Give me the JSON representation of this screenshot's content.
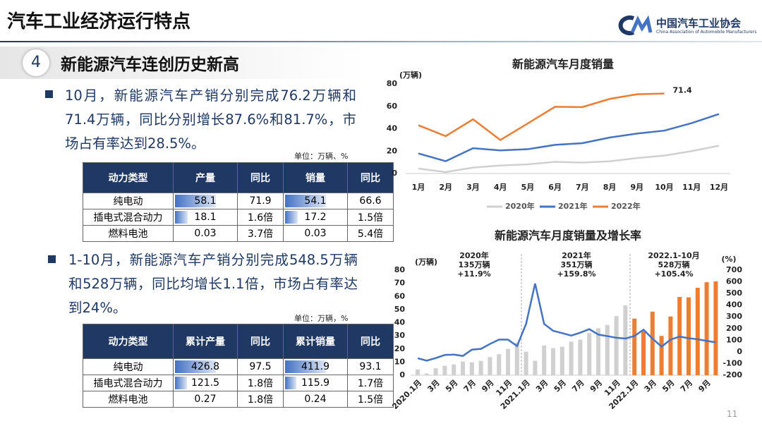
{
  "header": {
    "title": "汽车工业经济运行特点",
    "logo_cn": "中国汽车工业协会",
    "logo_en": "China Association of Automobile Manufacturers"
  },
  "section": {
    "number": 4,
    "title": "新能源汽车连创历史新高"
  },
  "bullets": [
    "10月，新能源汽车产销分别完成76.2万辆和71.4万辆，同比分别增长87.6%和81.7%，市场占有率达到28.5%。",
    "1-10月，新能源汽车产销分别完成548.5万辆和528万辆，同比均增长1.1倍，市场占有率达到24%。"
  ],
  "table1": {
    "unit": "单位：万辆、%",
    "bar_columns": [
      1,
      3
    ],
    "header": [
      "动力类型",
      "产量",
      "同比",
      "销量",
      "同比"
    ],
    "rows": [
      [
        "纯电动",
        58.1,
        71.9,
        54.1,
        66.6
      ],
      [
        "插电式混合动力",
        18.1,
        "1.6倍",
        17.2,
        "1.5倍"
      ],
      [
        "燃料电池",
        0.03,
        "3.7倍",
        0.03,
        "5.4倍"
      ]
    ]
  },
  "table2": {
    "unit": "单位：万辆，%",
    "bar_columns": [
      1,
      3
    ],
    "header": [
      "动力类型",
      "累计产量",
      "同比",
      "累计销量",
      "同比"
    ],
    "rows": [
      [
        "纯电动",
        426.8,
        97.5,
        411.9,
        93.1
      ],
      [
        "插电式混合动力",
        121.5,
        "1.8倍",
        115.9,
        "1.7倍"
      ],
      [
        "燃料电池",
        0.27,
        "1.8倍",
        0.24,
        "1.5倍"
      ]
    ]
  },
  "page_number": 11,
  "chart_data": [
    {
      "type": "line",
      "title": "新能源汽车月度销量",
      "y_label": "(万辆)",
      "ylim": [
        0,
        80
      ],
      "yticks": [
        0,
        20,
        40,
        60,
        80
      ],
      "grid": false,
      "categories": [
        "1月",
        "2月",
        "3月",
        "4月",
        "5月",
        "6月",
        "7月",
        "8月",
        "9月",
        "10月",
        "11月",
        "12月"
      ],
      "series": [
        {
          "name": "2020年",
          "color": "#d0d0d0",
          "values": [
            4.4,
            1.3,
            5.3,
            7.2,
            8.2,
            10.4,
            9.8,
            10.9,
            13.8,
            16,
            20,
            24.8
          ]
        },
        {
          "name": "2021年",
          "color": "#4472c4",
          "values": [
            17.9,
            11,
            22.6,
            20.6,
            21.7,
            25.6,
            27.1,
            32.1,
            35.7,
            38.3,
            45,
            53.1
          ]
        },
        {
          "name": "2022年",
          "color": "#ed7d31",
          "label_last": true,
          "values": [
            43.1,
            33.4,
            48.4,
            29.9,
            44.7,
            59.6,
            59.3,
            66.6,
            70.8,
            71.4,
            null,
            null
          ]
        }
      ]
    },
    {
      "type": "combo",
      "title": "新能源汽车月度销量及增长率",
      "y_label": "(万辆)",
      "y2_label": "(%)",
      "ylim": [
        0,
        80
      ],
      "yticks": [
        0,
        10,
        20,
        30,
        40,
        50,
        60,
        70,
        80
      ],
      "y2lim": [
        -200,
        700
      ],
      "y2ticks": [
        -200,
        -100,
        0,
        100,
        200,
        300,
        400,
        500,
        600,
        700
      ],
      "categories": [
        "2020.1月",
        null,
        "3月",
        null,
        "5月",
        null,
        "7月",
        null,
        "9月",
        null,
        "11月",
        null,
        "2021.1月",
        null,
        "3月",
        null,
        "5月",
        null,
        "7月",
        null,
        "9月",
        null,
        "11月",
        null,
        "2022.1月",
        null,
        "3月",
        null,
        "5月",
        null,
        "7月",
        null,
        "9月",
        null
      ],
      "series": [
        {
          "type": "bar",
          "color": "#d0d0d0",
          "values": [
            4.4,
            1.3,
            5.3,
            7.2,
            8.2,
            10.4,
            9.8,
            10.9,
            13.8,
            16,
            20,
            24.8,
            17.9,
            11,
            22.6,
            20.6,
            21.7,
            25.6,
            27.1,
            32.1,
            35.7,
            38.3,
            45,
            53.1,
            null,
            null,
            null,
            null,
            null,
            null,
            null,
            null,
            null,
            null
          ]
        },
        {
          "type": "bar",
          "color": "#ed7d31",
          "values": [
            null,
            null,
            null,
            null,
            null,
            null,
            null,
            null,
            null,
            null,
            null,
            null,
            null,
            null,
            null,
            null,
            null,
            null,
            null,
            null,
            null,
            null,
            null,
            null,
            43.1,
            33.4,
            48.4,
            29.9,
            44.7,
            59.6,
            59.3,
            66.6,
            70.8,
            71.4
          ]
        },
        {
          "type": "line",
          "axis": "y2",
          "color": "#4472c4",
          "values": [
            -54.4,
            -75.2,
            -53.2,
            -26.5,
            -23.5,
            -34.8,
            19.3,
            25.8,
            67.7,
            104.9,
            104.9,
            49.5,
            238.5,
            585.3,
            239.1,
            180.3,
            160.3,
            139.3,
            164.4,
            194.7,
            148.1,
            134.9,
            121.1,
            114.1,
            135.8,
            189.3,
            114.1,
            44.6,
            105.2,
            130.8,
            117.3,
            107.7,
            93.9,
            81.7
          ]
        }
      ],
      "annotations": [
        [
          "2020年",
          "135万辆",
          "+11.9%"
        ],
        [
          "2021年",
          "351万辆",
          "+159.8%"
        ],
        [
          "2022.1-10月",
          "528万辆",
          "+105.4%"
        ]
      ]
    }
  ]
}
